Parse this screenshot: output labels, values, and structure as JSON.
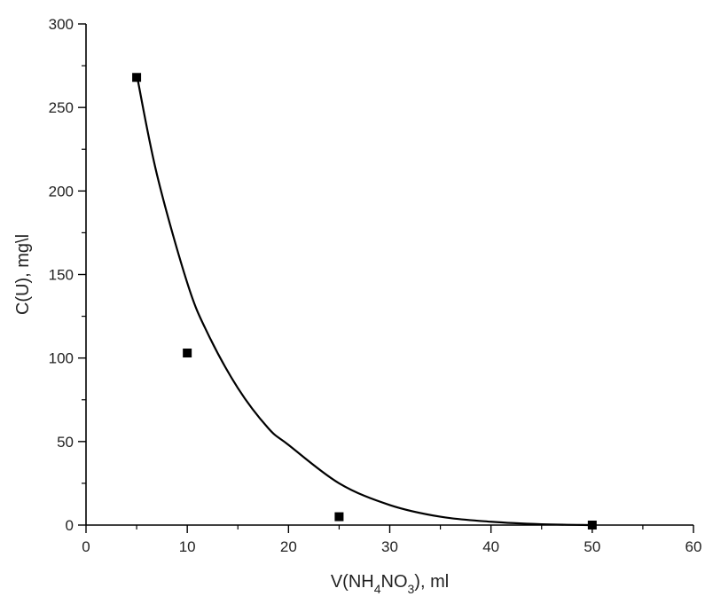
{
  "chart_data": {
    "type": "scatter",
    "xlabel": {
      "before_sub1": "V(NH",
      "sub1": "4",
      "between": "NO",
      "sub2": "3",
      "after_sub2": "), ml"
    },
    "ylabel": "C(U), mg\\l",
    "xlim": [
      0,
      60
    ],
    "ylim": [
      0,
      300
    ],
    "x_ticks": [
      0,
      10,
      20,
      30,
      40,
      50,
      60
    ],
    "y_ticks": [
      0,
      50,
      100,
      150,
      200,
      250,
      300
    ],
    "x_tick_labels": [
      "0",
      "10",
      "20",
      "30",
      "40",
      "50",
      "60"
    ],
    "y_tick_labels": [
      "0",
      "50",
      "100",
      "150",
      "200",
      "250",
      "300"
    ],
    "grid": false,
    "legend": "none",
    "series": [
      {
        "kind": "points",
        "marker": "square",
        "color": "#000000",
        "x": [
          5,
          10,
          25,
          50
        ],
        "y": [
          268,
          103,
          5,
          0
        ]
      },
      {
        "kind": "fit-curve",
        "color": "#000000",
        "x": [
          5,
          7,
          10,
          12,
          15,
          18,
          20,
          25,
          30,
          35,
          40,
          45,
          50
        ],
        "y": [
          270,
          210,
          145,
          115,
          82,
          58,
          48,
          25,
          12,
          5,
          2,
          0.5,
          0
        ]
      }
    ]
  }
}
